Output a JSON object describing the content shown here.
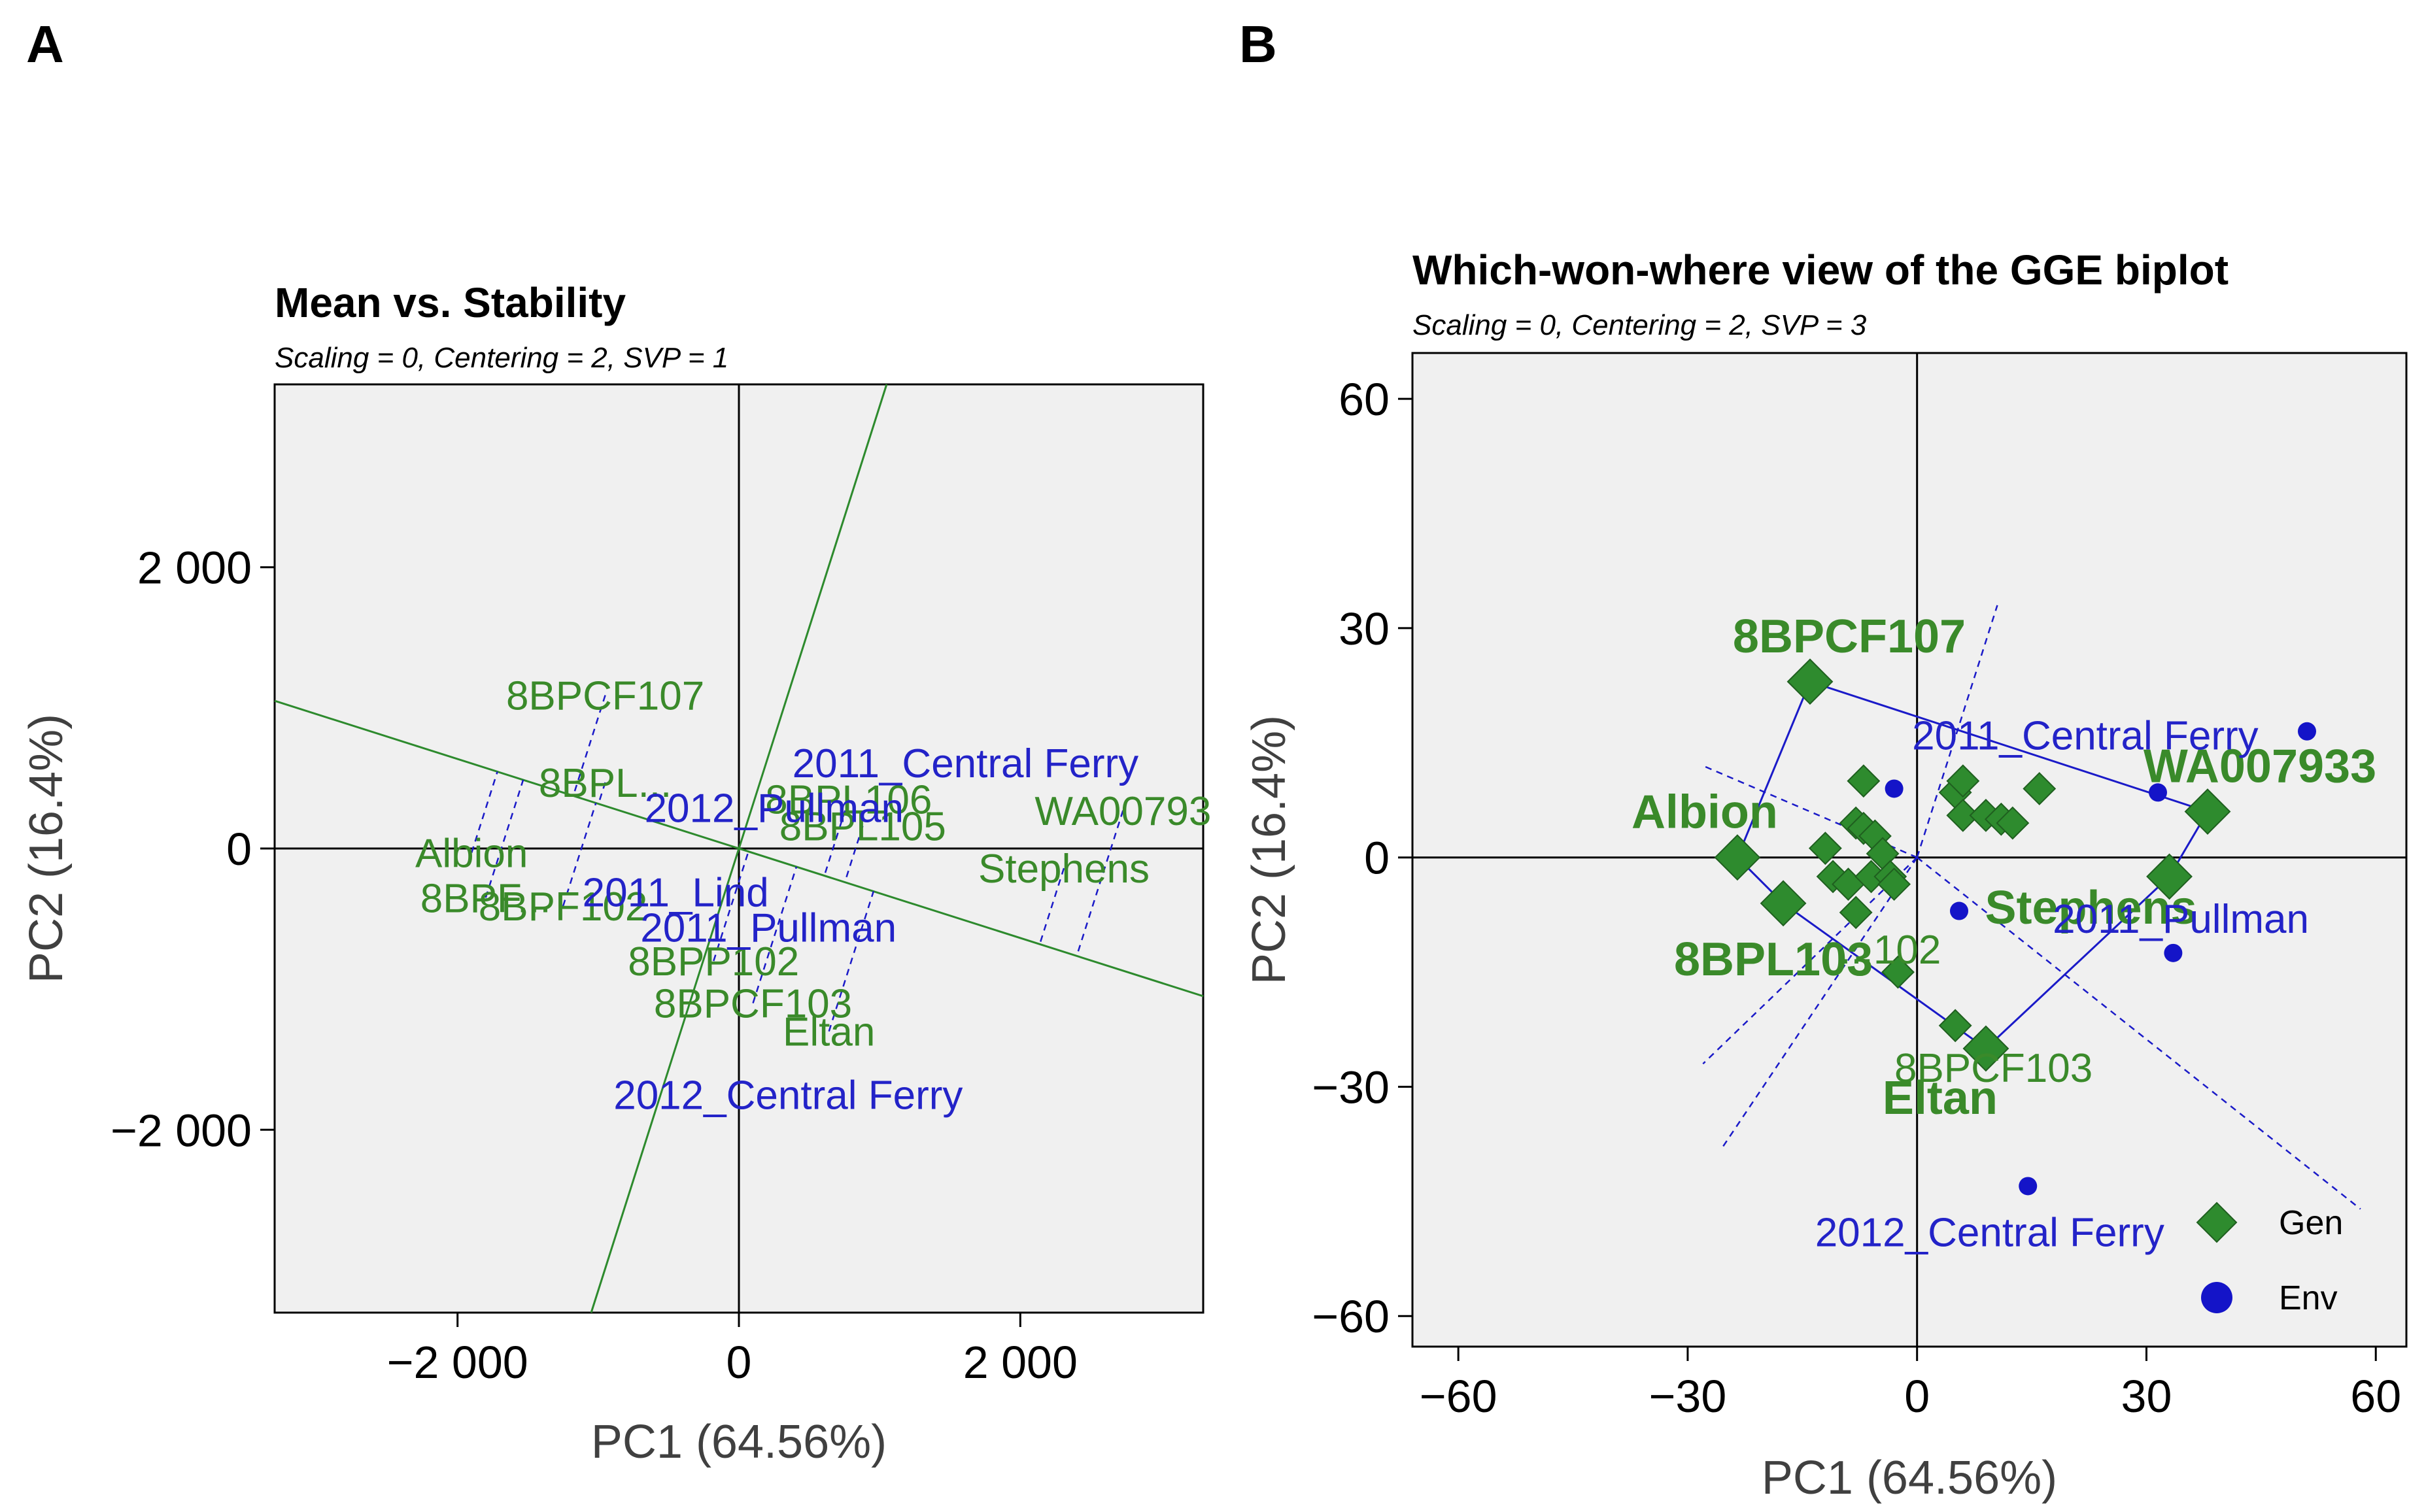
{
  "chart_data": [
    {
      "panel": "A",
      "type": "scatter",
      "title": "Mean vs. Stability",
      "subtitle": "Scaling = 0, Centering = 2, SVP = 1",
      "xlabel": "PC1 (64.56%)",
      "ylabel": "PC2 (16.4%)",
      "xlim": [
        -3300,
        3300
      ],
      "ylim": [
        -3300,
        3300
      ],
      "xticks": [
        -2000,
        0,
        2000
      ],
      "yticks": [
        -2000,
        0,
        2000
      ],
      "xtick_labels": [
        "−2 000",
        "0",
        "2 000"
      ],
      "ytick_labels": [
        "−2 000",
        "0",
        "2 000"
      ],
      "genotype_color": "#3a8a2a",
      "environment_color": "#2323c8",
      "genotypes": [
        {
          "label": "8BPCF107",
          "x": -950,
          "y": 1090
        },
        {
          "label": "8BPL...",
          "x": -950,
          "y": 470
        },
        {
          "label": "Albion",
          "x": -1900,
          "y": -30
        },
        {
          "label": "8BPF...",
          "x": -1800,
          "y": -350
        },
        {
          "label": "8BPF102",
          "x": -1250,
          "y": -410
        },
        {
          "label": "8BPP102",
          "x": -180,
          "y": -800
        },
        {
          "label": "8BPCF103",
          "x": 100,
          "y": -1100
        },
        {
          "label": "Eltan",
          "x": 640,
          "y": -1300
        },
        {
          "label": "Stephens",
          "x": 2310,
          "y": -140
        },
        {
          "label": "WA00793",
          "x": 2730,
          "y": 270
        },
        {
          "label": "8BPL106",
          "x": 780,
          "y": 350
        },
        {
          "label": "8BPL105",
          "x": 880,
          "y": 160
        }
      ],
      "environments": [
        {
          "label": "2011_Central Ferry",
          "x": 1610,
          "y": 610
        },
        {
          "label": "2012_Pullman",
          "x": 250,
          "y": 290
        },
        {
          "label": "2011_Lind",
          "x": -450,
          "y": -310
        },
        {
          "label": "2011_Pullman",
          "x": 210,
          "y": -560
        },
        {
          "label": "2012_Central Ferry",
          "x": 350,
          "y": -1750
        }
      ],
      "lines": [
        {
          "name": "average-environment-axis",
          "x1": -3300,
          "y1": 1050,
          "x2": 3300,
          "y2": -1050
        },
        {
          "name": "perpendicular-axis",
          "x1": -1050,
          "y1": -3300,
          "x2": 1050,
          "y2": 3300
        }
      ]
    },
    {
      "panel": "B",
      "type": "scatter",
      "title": "Which-won-where view of the GGE biplot",
      "subtitle": "Scaling = 0, Centering = 2, SVP = 3",
      "xlabel": "PC1 (64.56%)",
      "ylabel": "PC2 (16.4%)",
      "xlim": [
        -66,
        64
      ],
      "ylim": [
        -64,
        66
      ],
      "xticks": [
        -60,
        -30,
        0,
        30,
        60
      ],
      "yticks": [
        -60,
        -30,
        0,
        30,
        60
      ],
      "xtick_labels": [
        "−60",
        "−30",
        "0",
        "30",
        "60"
      ],
      "ytick_labels": [
        "−60",
        "−30",
        "0",
        "30",
        "60"
      ],
      "legend": [
        {
          "label": "Gen",
          "marker": "diamond",
          "color": "#3a8a2a"
        },
        {
          "label": "Env",
          "marker": "circle",
          "color": "#1414c8"
        }
      ],
      "legend_position": "bottom-right",
      "labeled_genotypes": [
        {
          "label": "8BPCF107",
          "x": -14,
          "y": 23
        },
        {
          "label": "Albion",
          "x": -23.5,
          "y": 0
        },
        {
          "label": "8BPL103",
          "x": -17.5,
          "y": -6
        },
        {
          "label": "WA007933",
          "x": 38,
          "y": 6
        },
        {
          "label": "Stephens",
          "x": 33,
          "y": -2.5
        },
        {
          "label": "Eltan",
          "x": 9,
          "y": -25
        }
      ],
      "other_genotype_points": [
        [
          -7,
          10
        ],
        [
          -8,
          4.5
        ],
        [
          -7,
          3.8
        ],
        [
          -5.5,
          2.8
        ],
        [
          -4.5,
          0.5
        ],
        [
          -12,
          1.2
        ],
        [
          -11,
          -2.5
        ],
        [
          -9,
          -3.5
        ],
        [
          -8,
          -7.2
        ],
        [
          -6,
          -2.5
        ],
        [
          -3.5,
          -2.5
        ],
        [
          -3,
          -3.5
        ],
        [
          -2.5,
          -15
        ],
        [
          5,
          8.5
        ],
        [
          6,
          10
        ],
        [
          6,
          5.5
        ],
        [
          9,
          5.5
        ],
        [
          11,
          5
        ],
        [
          12.5,
          4.5
        ],
        [
          16,
          9
        ],
        [
          5,
          -22
        ]
      ],
      "genotype_small_labels": [
        {
          "label": "...102",
          "x": -3.5,
          "y": -12
        },
        {
          "label": "8BPCF103",
          "x": 10,
          "y": -27.5
        }
      ],
      "environments": [
        {
          "label": "2011_Central Ferry",
          "x": 51,
          "y": 16.5,
          "label_x": 22,
          "label_y": 16
        },
        {
          "label": "2011_Pullman",
          "x": 33.5,
          "y": -12.5,
          "label_x": 34.5,
          "label_y": -8
        },
        {
          "label": "2012_Central Ferry",
          "x": 14.5,
          "y": -43,
          "label_x": 9.5,
          "label_y": -49
        },
        {
          "label": "",
          "x": -3,
          "y": 9
        },
        {
          "label": "",
          "x": 5.5,
          "y": -7
        },
        {
          "label": "",
          "x": 31.5,
          "y": 8.5
        }
      ],
      "hull_polygon": [
        [
          -14,
          23
        ],
        [
          38,
          6
        ],
        [
          33,
          -2.5
        ],
        [
          9,
          -25
        ],
        [
          -17.5,
          -6
        ],
        [
          -23.5,
          0
        ]
      ],
      "sector_rays": [
        {
          "x1": 0,
          "y1": 0,
          "x2": 10.5,
          "y2": 33
        },
        {
          "x1": 0,
          "y1": 0,
          "x2": 58,
          "y2": -46
        },
        {
          "x1": 0,
          "y1": 0,
          "x2": -28,
          "y2": 12
        },
        {
          "x1": 0,
          "y1": 0,
          "x2": -28,
          "y2": -27
        },
        {
          "x1": 0,
          "y1": 0,
          "x2": -25.5,
          "y2": -38
        }
      ]
    }
  ]
}
